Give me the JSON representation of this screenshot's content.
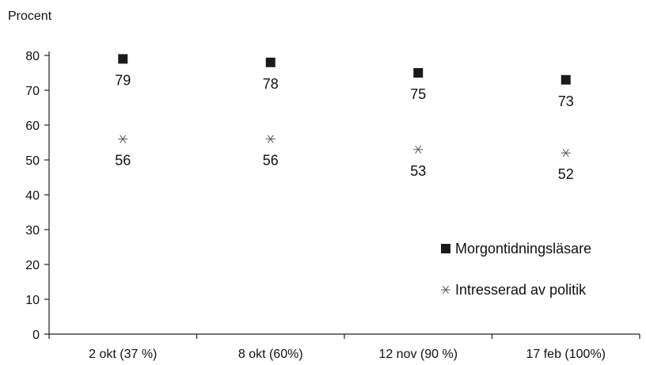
{
  "chart_data": {
    "type": "scatter",
    "ylabel": "Procent",
    "xlabel": "",
    "ylim": [
      0,
      80
    ],
    "yticks": [
      0,
      10,
      20,
      30,
      40,
      50,
      60,
      70,
      80
    ],
    "categories": [
      "2 okt (37 %)",
      "8 okt (60%)",
      "12 nov (90 %)",
      "17 feb (100%)"
    ],
    "series": [
      {
        "name": "Morgontidningsläsare",
        "marker": "square",
        "color": "#1a1a1a",
        "values": [
          79,
          78,
          75,
          73
        ]
      },
      {
        "name": "Intresserad av politik",
        "marker": "asterisk",
        "color": "#555555",
        "values": [
          56,
          56,
          53,
          52
        ]
      }
    ],
    "legend_position": "right"
  }
}
